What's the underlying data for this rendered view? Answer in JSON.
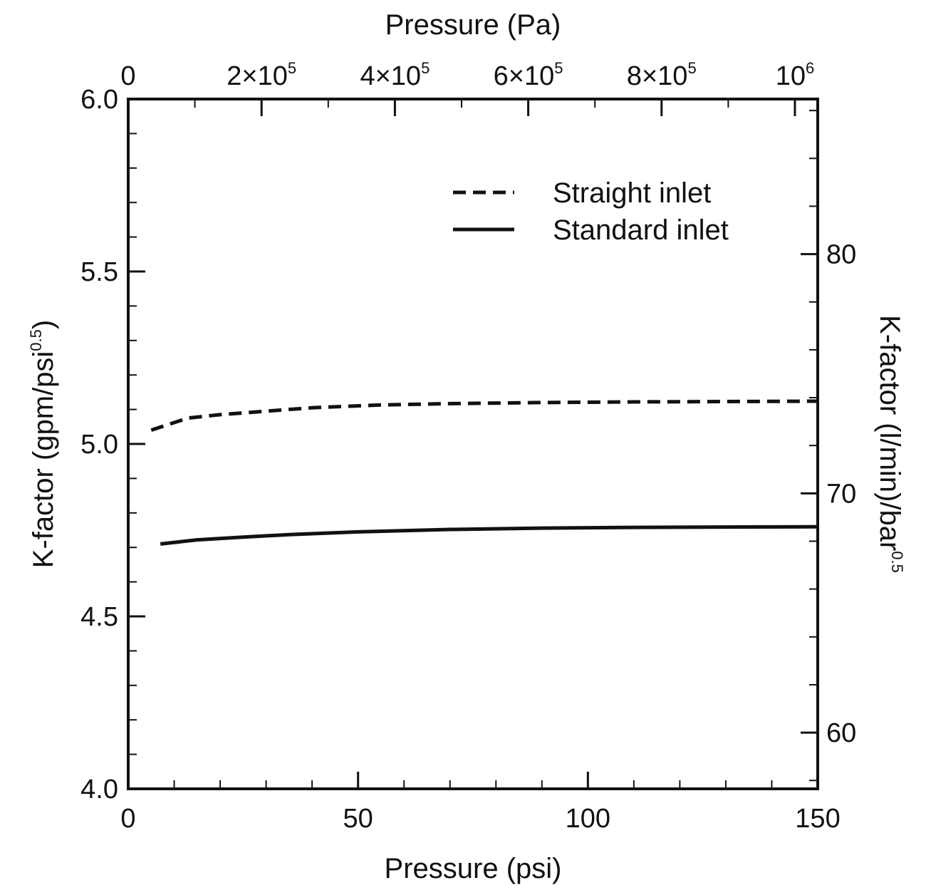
{
  "chart_data": {
    "type": "line",
    "x_bottom": {
      "label": "Pressure (psi)",
      "range": [
        0,
        150
      ],
      "major_ticks": [
        0,
        50,
        100,
        150
      ],
      "tick_labels": [
        "0",
        "50",
        "100",
        "150"
      ],
      "minor_step": 10
    },
    "x_top": {
      "label": "Pressure (Pa)",
      "range": [
        0,
        1034214
      ],
      "ticks": [
        {
          "value": 0,
          "label": "0"
        },
        {
          "value": 200000,
          "label": "2×10",
          "sup": "5"
        },
        {
          "value": 400000,
          "label": "4×10",
          "sup": "5"
        },
        {
          "value": 600000,
          "label": "6×10",
          "sup": "5"
        },
        {
          "value": 800000,
          "label": "8×10",
          "sup": "5"
        },
        {
          "value": 1000000,
          "label": "10",
          "sup": "6"
        }
      ],
      "minor_step": 100000
    },
    "y_left": {
      "label": "K-factor (gpm/psi",
      "label_sup": "0.5",
      "label_end": ")",
      "range": [
        4.0,
        6.0
      ],
      "major_ticks": [
        4.0,
        4.5,
        5.0,
        5.5,
        6.0
      ],
      "tick_labels": [
        "4.0",
        "4.5",
        "5.0",
        "5.5",
        "6.0"
      ],
      "minor_step": 0.1
    },
    "y_right": {
      "label": "K-factor (l/min)/bar",
      "label_sup": "0.5",
      "range": [
        57.65,
        86.48
      ],
      "major_ticks": [
        60,
        70,
        80
      ],
      "tick_labels": [
        "60",
        "70",
        "80"
      ],
      "minor_step": 2
    },
    "series": [
      {
        "name": "Straight inlet",
        "style": "dashed",
        "x": [
          5,
          13,
          20,
          30,
          40,
          55,
          70,
          90,
          110,
          130,
          150
        ],
        "y": [
          5.04,
          5.075,
          5.085,
          5.095,
          5.105,
          5.113,
          5.117,
          5.12,
          5.122,
          5.123,
          5.124
        ]
      },
      {
        "name": "Standard inlet",
        "style": "solid",
        "x": [
          7,
          15,
          25,
          35,
          50,
          70,
          90,
          110,
          130,
          150
        ],
        "y": [
          4.71,
          4.722,
          4.73,
          4.737,
          4.745,
          4.752,
          4.756,
          4.758,
          4.759,
          4.76
        ]
      }
    ],
    "legend": {
      "placement": "top-right"
    },
    "grid": false,
    "colors": {
      "line": "#111111",
      "axes": "#111111"
    }
  }
}
